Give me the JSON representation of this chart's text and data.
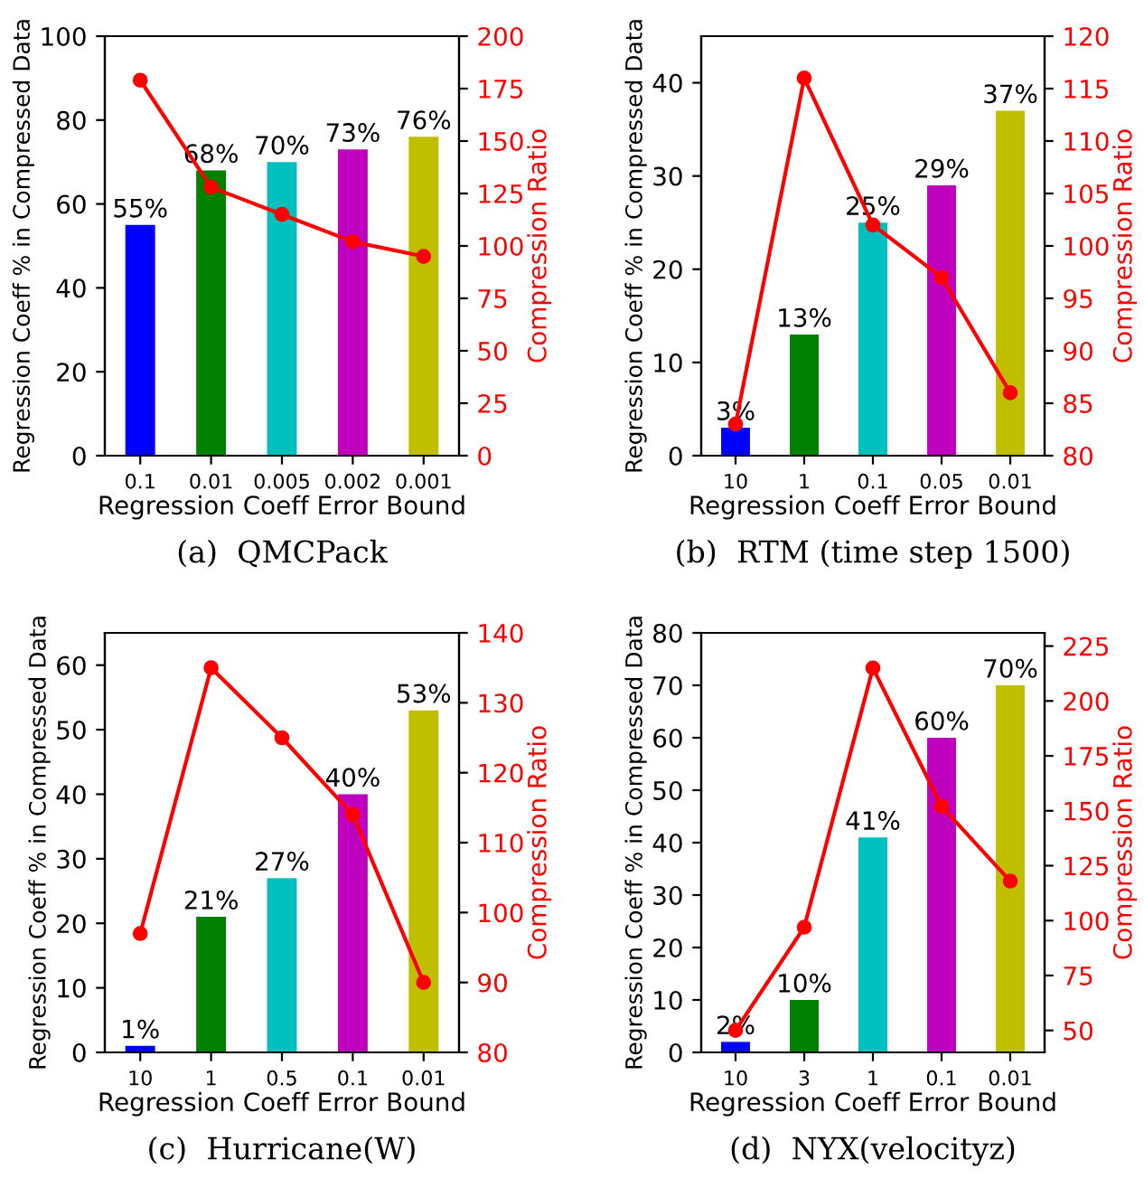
{
  "chart_data": [
    {
      "type": "bar",
      "title": "(a)  QMCPack",
      "xlabel": "Regression Coeff Error Bound",
      "ylabel": "Regression Coeff % in Compressed Data",
      "y2label": "Compression Ratio",
      "categories": [
        "0.1",
        "0.01",
        "0.005",
        "0.002",
        "0.001"
      ],
      "series": [
        {
          "values": [
            55,
            68,
            70,
            73,
            76
          ],
          "colors": [
            "#0000ff",
            "#008000",
            "#00bfbf",
            "#bf00bf",
            "#bfbf00"
          ],
          "value_labels": [
            "55%",
            "68%",
            "70%",
            "73%",
            "76%"
          ]
        },
        {
          "type": "line",
          "axis": "y2",
          "color": "#ff0000",
          "values": [
            179,
            128,
            115,
            102,
            95
          ]
        }
      ],
      "ylim": [
        0,
        100
      ],
      "yticks": [
        0,
        20,
        40,
        60,
        80,
        100
      ],
      "y2lim": [
        0,
        200
      ],
      "y2ticks": [
        0,
        25,
        50,
        75,
        100,
        125,
        150,
        175,
        200
      ],
      "marker": "circle",
      "grid": false,
      "legend": false
    },
    {
      "type": "bar",
      "title": "(b)  RTM (time step 1500)",
      "xlabel": "Regression Coeff Error Bound",
      "ylabel": "Regression Coeff % in Compressed Data",
      "y2label": "Compression Ratio",
      "categories": [
        "10",
        "1",
        "0.1",
        "0.05",
        "0.01"
      ],
      "series": [
        {
          "values": [
            3,
            13,
            25,
            29,
            37
          ],
          "colors": [
            "#0000ff",
            "#008000",
            "#00bfbf",
            "#bf00bf",
            "#bfbf00"
          ],
          "value_labels": [
            "3%",
            "13%",
            "25%",
            "29%",
            "37%"
          ]
        },
        {
          "type": "line",
          "axis": "y2",
          "color": "#ff0000",
          "values": [
            83,
            116,
            102,
            97,
            86
          ]
        }
      ],
      "ylim": [
        0,
        45
      ],
      "yticks": [
        0,
        10,
        20,
        30,
        40
      ],
      "y2lim": [
        80,
        120
      ],
      "y2ticks": [
        80,
        85,
        90,
        95,
        100,
        105,
        110,
        115,
        120
      ],
      "marker": "circle",
      "grid": false,
      "legend": false
    },
    {
      "type": "bar",
      "title": "(c)  Hurricane(W)",
      "xlabel": "Regression Coeff Error Bound",
      "ylabel": "Regression Coeff % in Compressed Data",
      "y2label": "Compression Ratio",
      "categories": [
        "10",
        "1",
        "0.5",
        "0.1",
        "0.01"
      ],
      "series": [
        {
          "values": [
            1,
            21,
            27,
            40,
            53
          ],
          "colors": [
            "#0000ff",
            "#008000",
            "#00bfbf",
            "#bf00bf",
            "#bfbf00"
          ],
          "value_labels": [
            "1%",
            "21%",
            "27%",
            "40%",
            "53%"
          ]
        },
        {
          "type": "line",
          "axis": "y2",
          "color": "#ff0000",
          "values": [
            97,
            135,
            125,
            114,
            90
          ]
        }
      ],
      "ylim": [
        0,
        65
      ],
      "yticks": [
        0,
        10,
        20,
        30,
        40,
        50,
        60
      ],
      "y2lim": [
        80,
        140
      ],
      "y2ticks": [
        80,
        90,
        100,
        110,
        120,
        130,
        140
      ],
      "marker": "circle",
      "grid": false,
      "legend": false
    },
    {
      "type": "bar",
      "title": "(d)  NYX(velocityz)",
      "xlabel": "Regression Coeff Error Bound",
      "ylabel": "Regression Coeff % in Compressed Data",
      "y2label": "Compression Ratio",
      "categories": [
        "10",
        "3",
        "1",
        "0.1",
        "0.01"
      ],
      "series": [
        {
          "values": [
            2,
            10,
            41,
            60,
            70
          ],
          "colors": [
            "#0000ff",
            "#008000",
            "#00bfbf",
            "#bf00bf",
            "#bfbf00"
          ],
          "value_labels": [
            "2%",
            "10%",
            "41%",
            "60%",
            "70%"
          ]
        },
        {
          "type": "line",
          "axis": "y2",
          "color": "#ff0000",
          "values": [
            50,
            97,
            215,
            152,
            118
          ]
        }
      ],
      "ylim": [
        0,
        80
      ],
      "yticks": [
        0,
        10,
        20,
        30,
        40,
        50,
        60,
        70,
        80
      ],
      "y2lim": [
        40,
        231
      ],
      "y2ticks": [
        50,
        75,
        100,
        125,
        150,
        175,
        200,
        225
      ],
      "marker": "circle",
      "grid": false,
      "legend": false
    }
  ]
}
